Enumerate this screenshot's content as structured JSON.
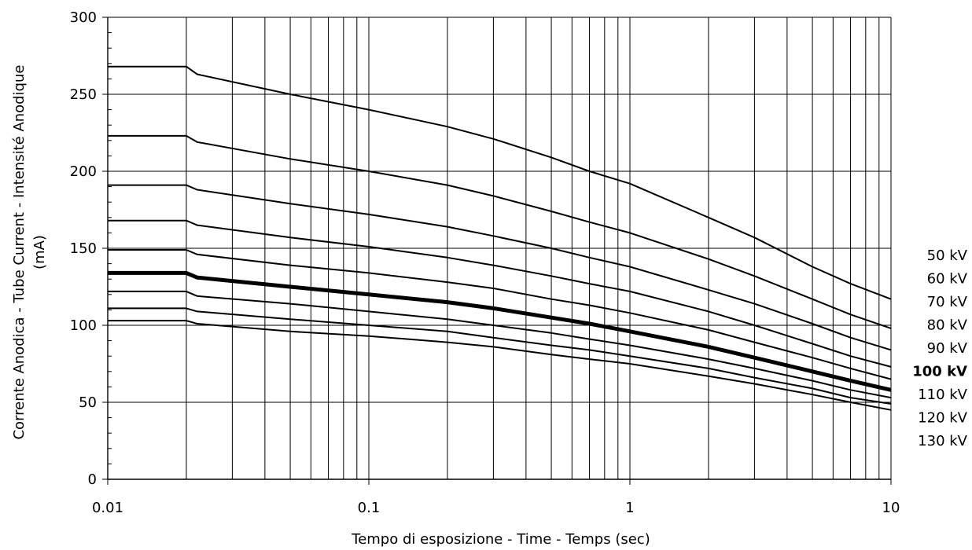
{
  "chart_data": {
    "type": "line",
    "xlabel": "Tempo di esposizione - Time - Temps  (sec)",
    "ylabel_lines": [
      "Corrente Anodica - Tube Current - Intensité Anodique",
      "(mA)"
    ],
    "x_scale": "log",
    "xlim": [
      0.01,
      10
    ],
    "ylim": [
      0,
      300
    ],
    "x_tick_labels": [
      "0.01",
      "0.1",
      "1",
      "10"
    ],
    "y_tick_labels": [
      "0",
      "50",
      "100",
      "150",
      "200",
      "250",
      "300"
    ],
    "grid": true,
    "legend_position": "right",
    "series": [
      {
        "name": "50 kV",
        "bold": false,
        "points": [
          [
            0.01,
            268
          ],
          [
            0.02,
            268
          ],
          [
            0.022,
            263
          ],
          [
            0.05,
            250
          ],
          [
            0.1,
            240
          ],
          [
            0.2,
            229
          ],
          [
            0.3,
            221
          ],
          [
            0.5,
            209
          ],
          [
            0.7,
            200
          ],
          [
            1,
            192
          ],
          [
            2,
            170
          ],
          [
            3,
            157
          ],
          [
            5,
            138
          ],
          [
            7,
            127
          ],
          [
            10,
            117
          ]
        ]
      },
      {
        "name": "60 kV",
        "bold": false,
        "points": [
          [
            0.01,
            223
          ],
          [
            0.02,
            223
          ],
          [
            0.022,
            219
          ],
          [
            0.05,
            208
          ],
          [
            0.1,
            200
          ],
          [
            0.2,
            191
          ],
          [
            0.3,
            184
          ],
          [
            0.5,
            174
          ],
          [
            0.7,
            167
          ],
          [
            1,
            160
          ],
          [
            2,
            143
          ],
          [
            3,
            132
          ],
          [
            5,
            117
          ],
          [
            7,
            107
          ],
          [
            10,
            98
          ]
        ]
      },
      {
        "name": "70 kV",
        "bold": false,
        "points": [
          [
            0.01,
            191
          ],
          [
            0.02,
            191
          ],
          [
            0.022,
            188
          ],
          [
            0.05,
            179
          ],
          [
            0.1,
            172
          ],
          [
            0.2,
            164
          ],
          [
            0.3,
            158
          ],
          [
            0.5,
            150
          ],
          [
            0.7,
            144
          ],
          [
            1,
            138
          ],
          [
            2,
            123
          ],
          [
            3,
            114
          ],
          [
            5,
            101
          ],
          [
            7,
            92
          ],
          [
            10,
            84
          ]
        ]
      },
      {
        "name": "80 kV",
        "bold": false,
        "points": [
          [
            0.01,
            168
          ],
          [
            0.02,
            168
          ],
          [
            0.022,
            165
          ],
          [
            0.05,
            157
          ],
          [
            0.1,
            151
          ],
          [
            0.2,
            144
          ],
          [
            0.3,
            139
          ],
          [
            0.5,
            132
          ],
          [
            0.7,
            127
          ],
          [
            1,
            122
          ],
          [
            2,
            109
          ],
          [
            3,
            100
          ],
          [
            5,
            88
          ],
          [
            7,
            80
          ],
          [
            10,
            73
          ]
        ]
      },
      {
        "name": "90 kV",
        "bold": false,
        "points": [
          [
            0.01,
            149
          ],
          [
            0.02,
            149
          ],
          [
            0.022,
            146
          ],
          [
            0.05,
            139
          ],
          [
            0.1,
            134
          ],
          [
            0.2,
            128
          ],
          [
            0.3,
            124
          ],
          [
            0.5,
            117
          ],
          [
            0.7,
            113
          ],
          [
            1,
            108
          ],
          [
            2,
            97
          ],
          [
            3,
            89
          ],
          [
            5,
            79
          ],
          [
            7,
            72
          ],
          [
            10,
            65
          ]
        ]
      },
      {
        "name": "100 kV",
        "bold": true,
        "points": [
          [
            0.01,
            134
          ],
          [
            0.02,
            134
          ],
          [
            0.022,
            131
          ],
          [
            0.05,
            125
          ],
          [
            0.1,
            120
          ],
          [
            0.2,
            115
          ],
          [
            0.3,
            111
          ],
          [
            0.5,
            105
          ],
          [
            0.7,
            101
          ],
          [
            1,
            96
          ],
          [
            2,
            86
          ],
          [
            3,
            79
          ],
          [
            5,
            70
          ],
          [
            7,
            64
          ],
          [
            10,
            58
          ]
        ]
      },
      {
        "name": "110 kV",
        "bold": false,
        "points": [
          [
            0.01,
            122
          ],
          [
            0.02,
            122
          ],
          [
            0.022,
            119
          ],
          [
            0.05,
            114
          ],
          [
            0.1,
            109
          ],
          [
            0.2,
            104
          ],
          [
            0.3,
            100
          ],
          [
            0.5,
            95
          ],
          [
            0.7,
            91
          ],
          [
            1,
            87
          ],
          [
            2,
            78
          ],
          [
            3,
            72
          ],
          [
            5,
            64
          ],
          [
            7,
            58
          ],
          [
            10,
            53
          ]
        ]
      },
      {
        "name": "120 kV",
        "bold": false,
        "points": [
          [
            0.01,
            111
          ],
          [
            0.02,
            111
          ],
          [
            0.022,
            109
          ],
          [
            0.05,
            104
          ],
          [
            0.1,
            100
          ],
          [
            0.2,
            96
          ],
          [
            0.3,
            92
          ],
          [
            0.5,
            87
          ],
          [
            0.7,
            84
          ],
          [
            1,
            80
          ],
          [
            2,
            72
          ],
          [
            3,
            66
          ],
          [
            5,
            59
          ],
          [
            7,
            53
          ],
          [
            10,
            49
          ]
        ]
      },
      {
        "name": "130 kV",
        "bold": false,
        "points": [
          [
            0.01,
            103
          ],
          [
            0.02,
            103
          ],
          [
            0.022,
            101
          ],
          [
            0.05,
            96
          ],
          [
            0.1,
            93
          ],
          [
            0.2,
            89
          ],
          [
            0.3,
            86
          ],
          [
            0.5,
            81
          ],
          [
            0.7,
            78
          ],
          [
            1,
            75
          ],
          [
            2,
            67
          ],
          [
            3,
            62
          ],
          [
            5,
            55
          ],
          [
            7,
            50
          ],
          [
            10,
            45
          ]
        ]
      }
    ]
  }
}
